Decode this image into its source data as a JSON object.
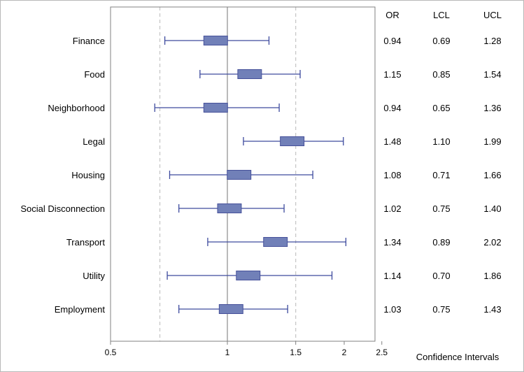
{
  "chart_data": {
    "type": "forest",
    "x_scale": "log",
    "xlim": [
      0.5,
      2.5
    ],
    "xticks": [
      0.5,
      1,
      1.5,
      2,
      2.5
    ],
    "xtick_labels": [
      "0.5",
      "1",
      "1.5",
      "2",
      "2.5"
    ],
    "xlabel": "Confidence Intervals",
    "reference_lines": {
      "solid": 1,
      "dashed": [
        0.67,
        1.5
      ]
    },
    "column_headers": {
      "or": "OR",
      "lcl": "LCL",
      "ucl": "UCL"
    },
    "rows": [
      {
        "label": "Finance",
        "or": 0.94,
        "lcl": 0.69,
        "ucl": 1.28,
        "or_text": "0.94",
        "lcl_text": "0.69",
        "ucl_text": "1.28"
      },
      {
        "label": "Food",
        "or": 1.15,
        "lcl": 0.85,
        "ucl": 1.54,
        "or_text": "1.15",
        "lcl_text": "0.85",
        "ucl_text": "1.54"
      },
      {
        "label": "Neighborhood",
        "or": 0.94,
        "lcl": 0.65,
        "ucl": 1.36,
        "or_text": "0.94",
        "lcl_text": "0.65",
        "ucl_text": "1.36"
      },
      {
        "label": "Legal",
        "or": 1.48,
        "lcl": 1.1,
        "ucl": 1.99,
        "or_text": "1.48",
        "lcl_text": "1.10",
        "ucl_text": "1.99"
      },
      {
        "label": "Housing",
        "or": 1.08,
        "lcl": 0.71,
        "ucl": 1.66,
        "or_text": "1.08",
        "lcl_text": "0.71",
        "ucl_text": "1.66"
      },
      {
        "label": "Social Disconnection",
        "or": 1.02,
        "lcl": 0.75,
        "ucl": 1.4,
        "or_text": "1.02",
        "lcl_text": "0.75",
        "ucl_text": "1.40"
      },
      {
        "label": "Transport",
        "or": 1.34,
        "lcl": 0.89,
        "ucl": 2.02,
        "or_text": "1.34",
        "lcl_text": "0.89",
        "ucl_text": "2.02"
      },
      {
        "label": "Utility",
        "or": 1.14,
        "lcl": 0.7,
        "ucl": 1.86,
        "or_text": "1.14",
        "lcl_text": "0.70",
        "ucl_text": "1.86"
      },
      {
        "label": "Employment",
        "or": 1.03,
        "lcl": 0.75,
        "ucl": 1.43,
        "or_text": "1.03",
        "lcl_text": "0.75",
        "ucl_text": "1.43"
      }
    ],
    "colors": {
      "marker_fill": "#7180b8",
      "marker_stroke": "#46519a",
      "whisker": "#3d4a9e",
      "reference_line": "#8c8c8c",
      "dashed_line": "#c4c4c4",
      "frame": "#808080"
    }
  }
}
